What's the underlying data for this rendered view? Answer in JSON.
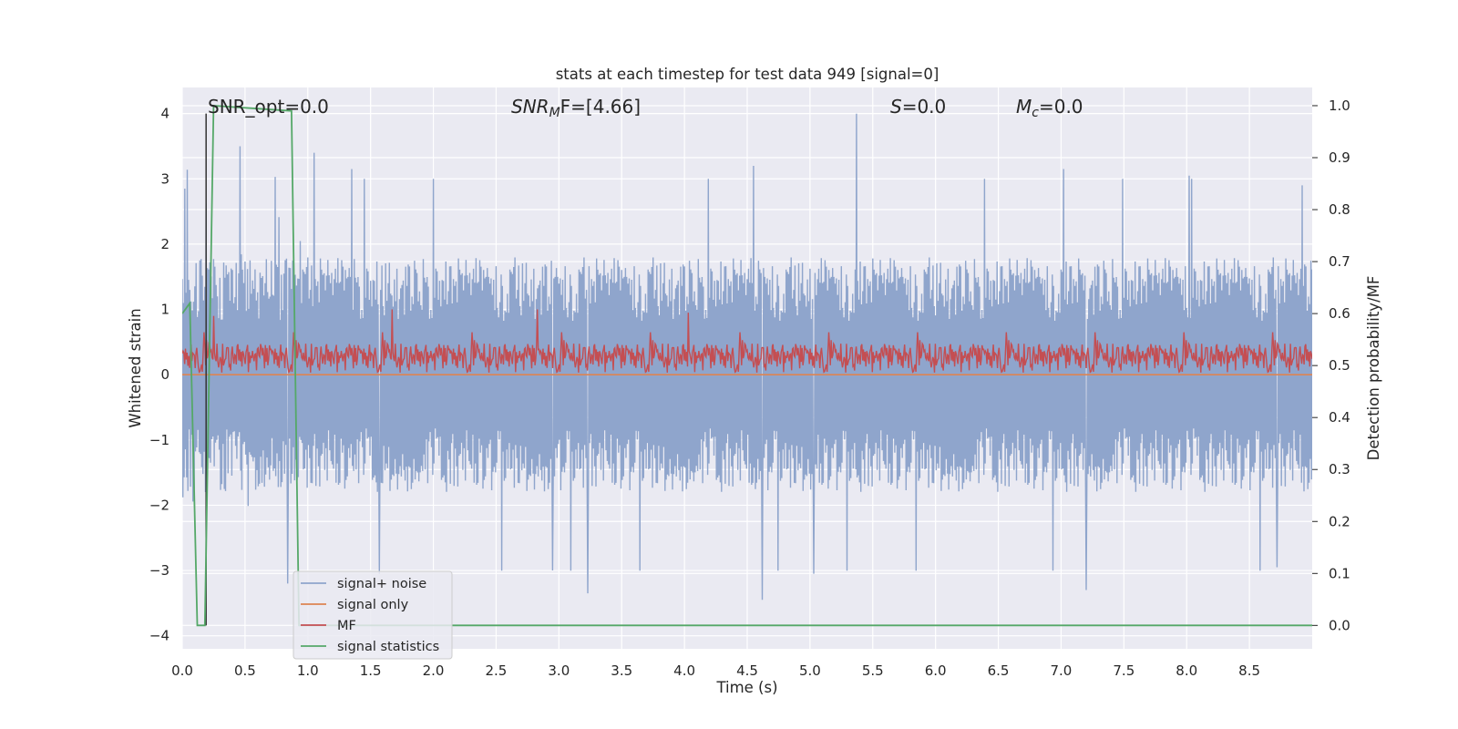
{
  "chart_data": {
    "type": "line",
    "title": "stats at each timestep for test data 949 [signal=0]",
    "xlabel": "Time (s)",
    "ylabel": "Whitened strain",
    "y2label": "Detection probability/MF",
    "xlim": [
      0.0,
      9.0
    ],
    "ylim": [
      -4.2,
      4.4
    ],
    "y2lim": [
      -0.045,
      1.035
    ],
    "x_ticks": [
      "0.0",
      "0.5",
      "1.0",
      "1.5",
      "2.0",
      "2.5",
      "3.0",
      "3.5",
      "4.0",
      "4.5",
      "5.0",
      "5.5",
      "6.0",
      "6.5",
      "7.0",
      "7.5",
      "8.0",
      "8.5"
    ],
    "x_tick_values": [
      0.0,
      0.5,
      1.0,
      1.5,
      2.0,
      2.5,
      3.0,
      3.5,
      4.0,
      4.5,
      5.0,
      5.5,
      6.0,
      6.5,
      7.0,
      7.5,
      8.0,
      8.5
    ],
    "y_ticks": [
      "4",
      "3",
      "2",
      "1",
      "0",
      "−1",
      "−2",
      "−3",
      "−4"
    ],
    "y_tick_values": [
      4,
      3,
      2,
      1,
      0,
      -1,
      -2,
      -3,
      -4
    ],
    "y2_ticks": [
      "1.0",
      "0.9",
      "0.8",
      "0.7",
      "0.6",
      "0.5",
      "0.4",
      "0.3",
      "0.2",
      "0.1",
      "0.0"
    ],
    "y2_tick_values": [
      1.0,
      0.9,
      0.8,
      0.7,
      0.6,
      0.5,
      0.4,
      0.3,
      0.2,
      0.1,
      0.0
    ],
    "annotations": {
      "snr_opt": "SNR_opt=0.0",
      "snr_mf_main": "SNR",
      "snr_mf_sub": "M",
      "snr_mf_tail": "F=[4.66]",
      "s_main": "S",
      "s_tail": "=0.0",
      "mc_main": "M",
      "mc_sub": "c",
      "mc_tail": "=0.0"
    },
    "marker_line_x": 0.19,
    "series": [
      {
        "name": "signal+ noise",
        "color": "#8fa5cc",
        "axis": "left",
        "description": "whitened noise, approx. uniform amplitude",
        "amplitude_typical": 1.5,
        "amplitude_peak_max": 4.0,
        "peaks": [
          [
            0.02,
            2.85
          ],
          [
            0.46,
            3.5
          ],
          [
            0.84,
            -3.2
          ],
          [
            1.05,
            3.4
          ],
          [
            1.35,
            3.15
          ],
          [
            1.57,
            -3.05
          ],
          [
            2.95,
            -3.0
          ],
          [
            3.23,
            -3.35
          ],
          [
            4.55,
            3.2
          ],
          [
            4.62,
            -3.45
          ],
          [
            5.37,
            4.0
          ],
          [
            5.03,
            -3.05
          ],
          [
            7.02,
            3.15
          ],
          [
            7.2,
            -3.3
          ],
          [
            8.02,
            3.05
          ],
          [
            8.72,
            -2.95
          ],
          [
            8.92,
            2.9
          ]
        ]
      },
      {
        "name": "signal only",
        "color": "#dd8452",
        "axis": "left",
        "x": [
          0.0,
          9.0
        ],
        "y": [
          0.0,
          0.0
        ]
      },
      {
        "name": "MF",
        "color": "#c44e52",
        "axis": "left",
        "description": "matched filter output, mostly between 0.0 and 0.6",
        "baseline": 0.25,
        "peaks": [
          [
            1.67,
            1.0
          ],
          [
            2.83,
            1.0
          ],
          [
            4.03,
            0.95
          ],
          [
            0.25,
            0.9
          ]
        ]
      },
      {
        "name": "signal statistics",
        "color": "#55a868",
        "axis": "right",
        "x": [
          0.0,
          0.06,
          0.12,
          0.18,
          0.25,
          0.87,
          0.93,
          1.0,
          9.0
        ],
        "y": [
          0.6,
          0.62,
          0.0,
          0.0,
          1.0,
          0.99,
          0.0,
          0.0,
          0.0
        ]
      }
    ],
    "legend_position": "lower-left",
    "grid": true
  }
}
